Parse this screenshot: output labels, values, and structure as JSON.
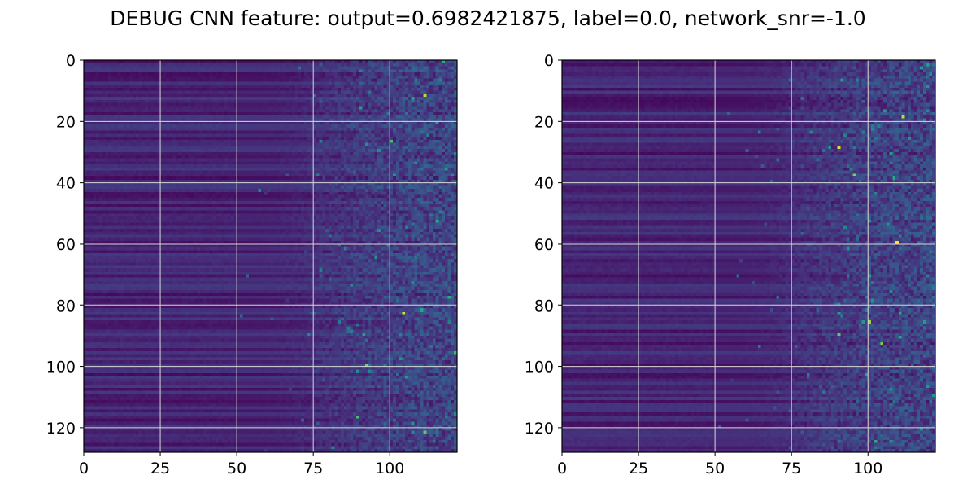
{
  "figure": {
    "title": "DEBUG CNN feature: output=0.6982421875, label=0.0, network_snr=-1.0"
  },
  "colors": {
    "colormap": "viridis",
    "viridis_stops": [
      "#440154",
      "#472d7b",
      "#3b528b",
      "#2c728e",
      "#21918c",
      "#28ae80",
      "#5ec962",
      "#addc30",
      "#fde725"
    ],
    "grid": "#d8d8d8",
    "axes": "#000000"
  },
  "chart_data": [
    {
      "type": "heatmap",
      "title": "",
      "xlabel": "",
      "ylabel": "",
      "shape": [
        128,
        122
      ],
      "xlim": [
        0,
        122
      ],
      "ylim": [
        128,
        0
      ],
      "y_inverted": true,
      "grid": true,
      "colormap": "viridis",
      "value_range": [
        0,
        1
      ],
      "xticks": [
        0,
        25,
        50,
        75,
        100
      ],
      "yticks": [
        0,
        20,
        40,
        60,
        80,
        100,
        120
      ],
      "description_of_values": "rows of low values (dark purple) for columns 0-50, increasing noisy values for columns 50-122",
      "column_profile": {
        "columns": [
          0,
          25,
          50,
          60,
          70,
          75,
          80,
          90,
          100,
          110,
          121
        ],
        "mean_value": [
          0.08,
          0.08,
          0.1,
          0.14,
          0.18,
          0.22,
          0.24,
          0.26,
          0.27,
          0.27,
          0.26
        ]
      },
      "highlights": [
        {
          "row": 82,
          "col": 104,
          "value": 0.95
        },
        {
          "row": 11,
          "col": 111,
          "value": 0.9
        },
        {
          "row": 99,
          "col": 92,
          "value": 0.8
        },
        {
          "row": 121,
          "col": 111,
          "value": 0.75
        },
        {
          "row": 116,
          "col": 89,
          "value": 0.7
        },
        {
          "row": 26,
          "col": 100,
          "value": 0.7
        }
      ]
    },
    {
      "type": "heatmap",
      "title": "",
      "xlabel": "",
      "ylabel": "",
      "shape": [
        128,
        122
      ],
      "xlim": [
        0,
        122
      ],
      "ylim": [
        128,
        0
      ],
      "y_inverted": true,
      "grid": true,
      "colormap": "viridis",
      "value_range": [
        0,
        1
      ],
      "xticks": [
        0,
        25,
        50,
        75,
        100
      ],
      "yticks": [
        0,
        20,
        40,
        60,
        80,
        100,
        120
      ],
      "description_of_values": "rows of low values (dark purple) for columns 0-50, increasing noisy values for columns 50-122",
      "column_profile": {
        "columns": [
          0,
          25,
          50,
          60,
          70,
          75,
          80,
          90,
          100,
          110,
          121
        ],
        "mean_value": [
          0.08,
          0.08,
          0.1,
          0.14,
          0.18,
          0.22,
          0.24,
          0.26,
          0.27,
          0.27,
          0.26
        ]
      },
      "highlights": [
        {
          "row": 59,
          "col": 109,
          "value": 1.0
        },
        {
          "row": 28,
          "col": 90,
          "value": 0.95
        },
        {
          "row": 18,
          "col": 111,
          "value": 0.9
        },
        {
          "row": 85,
          "col": 100,
          "value": 0.85
        },
        {
          "row": 92,
          "col": 104,
          "value": 0.8
        },
        {
          "row": 37,
          "col": 95,
          "value": 0.8
        },
        {
          "row": 89,
          "col": 90,
          "value": 0.75
        }
      ]
    }
  ]
}
